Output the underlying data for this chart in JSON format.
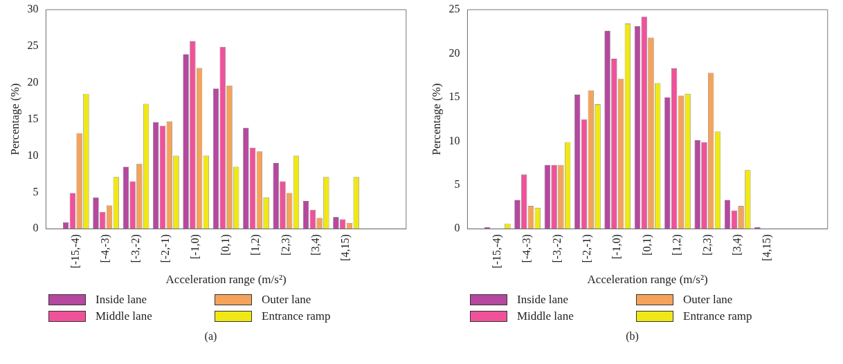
{
  "chart_data": [
    {
      "type": "bar",
      "xlabel": "Acceleration range (m/s²)",
      "ylabel": "Percentage (%)",
      "categories": [
        null,
        "[-15,-4)",
        "[-4,-3)",
        "[-3,-2)",
        "[-2,-1)",
        "[-1,0)",
        "[0,1)",
        "[1,2)",
        "[2,3)",
        "[3,4)",
        "[4,15)",
        null,
        null
      ],
      "ylim": [
        0,
        30
      ],
      "yticks": [
        0,
        5,
        10,
        15,
        20,
        25,
        30
      ],
      "grid": false,
      "legend": "bottom",
      "annotations": [
        "(a)"
      ],
      "series": [
        {
          "name": "Inside lane",
          "color": "#b5489f",
          "values": [
            null,
            0.9,
            4.3,
            8.5,
            14.6,
            23.9,
            19.2,
            13.8,
            9.0,
            3.8,
            1.6,
            null,
            null
          ]
        },
        {
          "name": "Middle lane",
          "color": "#f0529a",
          "values": [
            null,
            4.9,
            2.3,
            6.5,
            14.1,
            25.7,
            24.9,
            11.1,
            6.5,
            2.6,
            1.3,
            null,
            null
          ]
        },
        {
          "name": "Outer lane",
          "color": "#f5a35a",
          "values": [
            null,
            13.1,
            3.2,
            8.9,
            14.7,
            22.0,
            19.6,
            10.6,
            4.9,
            1.5,
            0.8,
            null,
            null
          ]
        },
        {
          "name": "Entrance ramp",
          "color": "#f0e816",
          "values": [
            null,
            18.5,
            7.1,
            17.1,
            10.0,
            10.0,
            8.5,
            4.3,
            10.0,
            7.1,
            7.1,
            null,
            null
          ]
        }
      ]
    },
    {
      "type": "bar",
      "xlabel": "Acceleration range (m/s²)",
      "ylabel": "Percentage (%)",
      "categories": [
        null,
        "[-15,-4)",
        "[-4,-3)",
        "[-3,-2)",
        "[-2,-1)",
        "[-1,0)",
        "[0,1)",
        "[1,2)",
        "[2,3)",
        "[3,4)",
        "[4,15)",
        null,
        null
      ],
      "ylim": [
        0,
        25
      ],
      "yticks": [
        0,
        5,
        10,
        15,
        20,
        25
      ],
      "grid": false,
      "legend": "bottom",
      "annotations": [
        "(b)"
      ],
      "series": [
        {
          "name": "Inside lane",
          "color": "#b5489f",
          "values": [
            null,
            0.2,
            3.3,
            7.3,
            15.3,
            22.6,
            23.1,
            15.0,
            10.1,
            3.3,
            0.2,
            null,
            null
          ]
        },
        {
          "name": "Middle lane",
          "color": "#f0529a",
          "values": [
            null,
            0,
            6.2,
            7.3,
            12.5,
            19.4,
            24.2,
            18.3,
            9.9,
            2.1,
            0,
            null,
            null
          ]
        },
        {
          "name": "Outer lane",
          "color": "#f5a35a",
          "values": [
            null,
            0,
            2.6,
            7.3,
            15.8,
            17.1,
            21.8,
            15.2,
            17.8,
            2.6,
            0,
            null,
            null
          ]
        },
        {
          "name": "Entrance ramp",
          "color": "#f0e816",
          "values": [
            null,
            0.6,
            2.4,
            9.9,
            14.2,
            23.4,
            16.6,
            15.4,
            11.1,
            6.7,
            0,
            null,
            null
          ]
        }
      ]
    }
  ]
}
